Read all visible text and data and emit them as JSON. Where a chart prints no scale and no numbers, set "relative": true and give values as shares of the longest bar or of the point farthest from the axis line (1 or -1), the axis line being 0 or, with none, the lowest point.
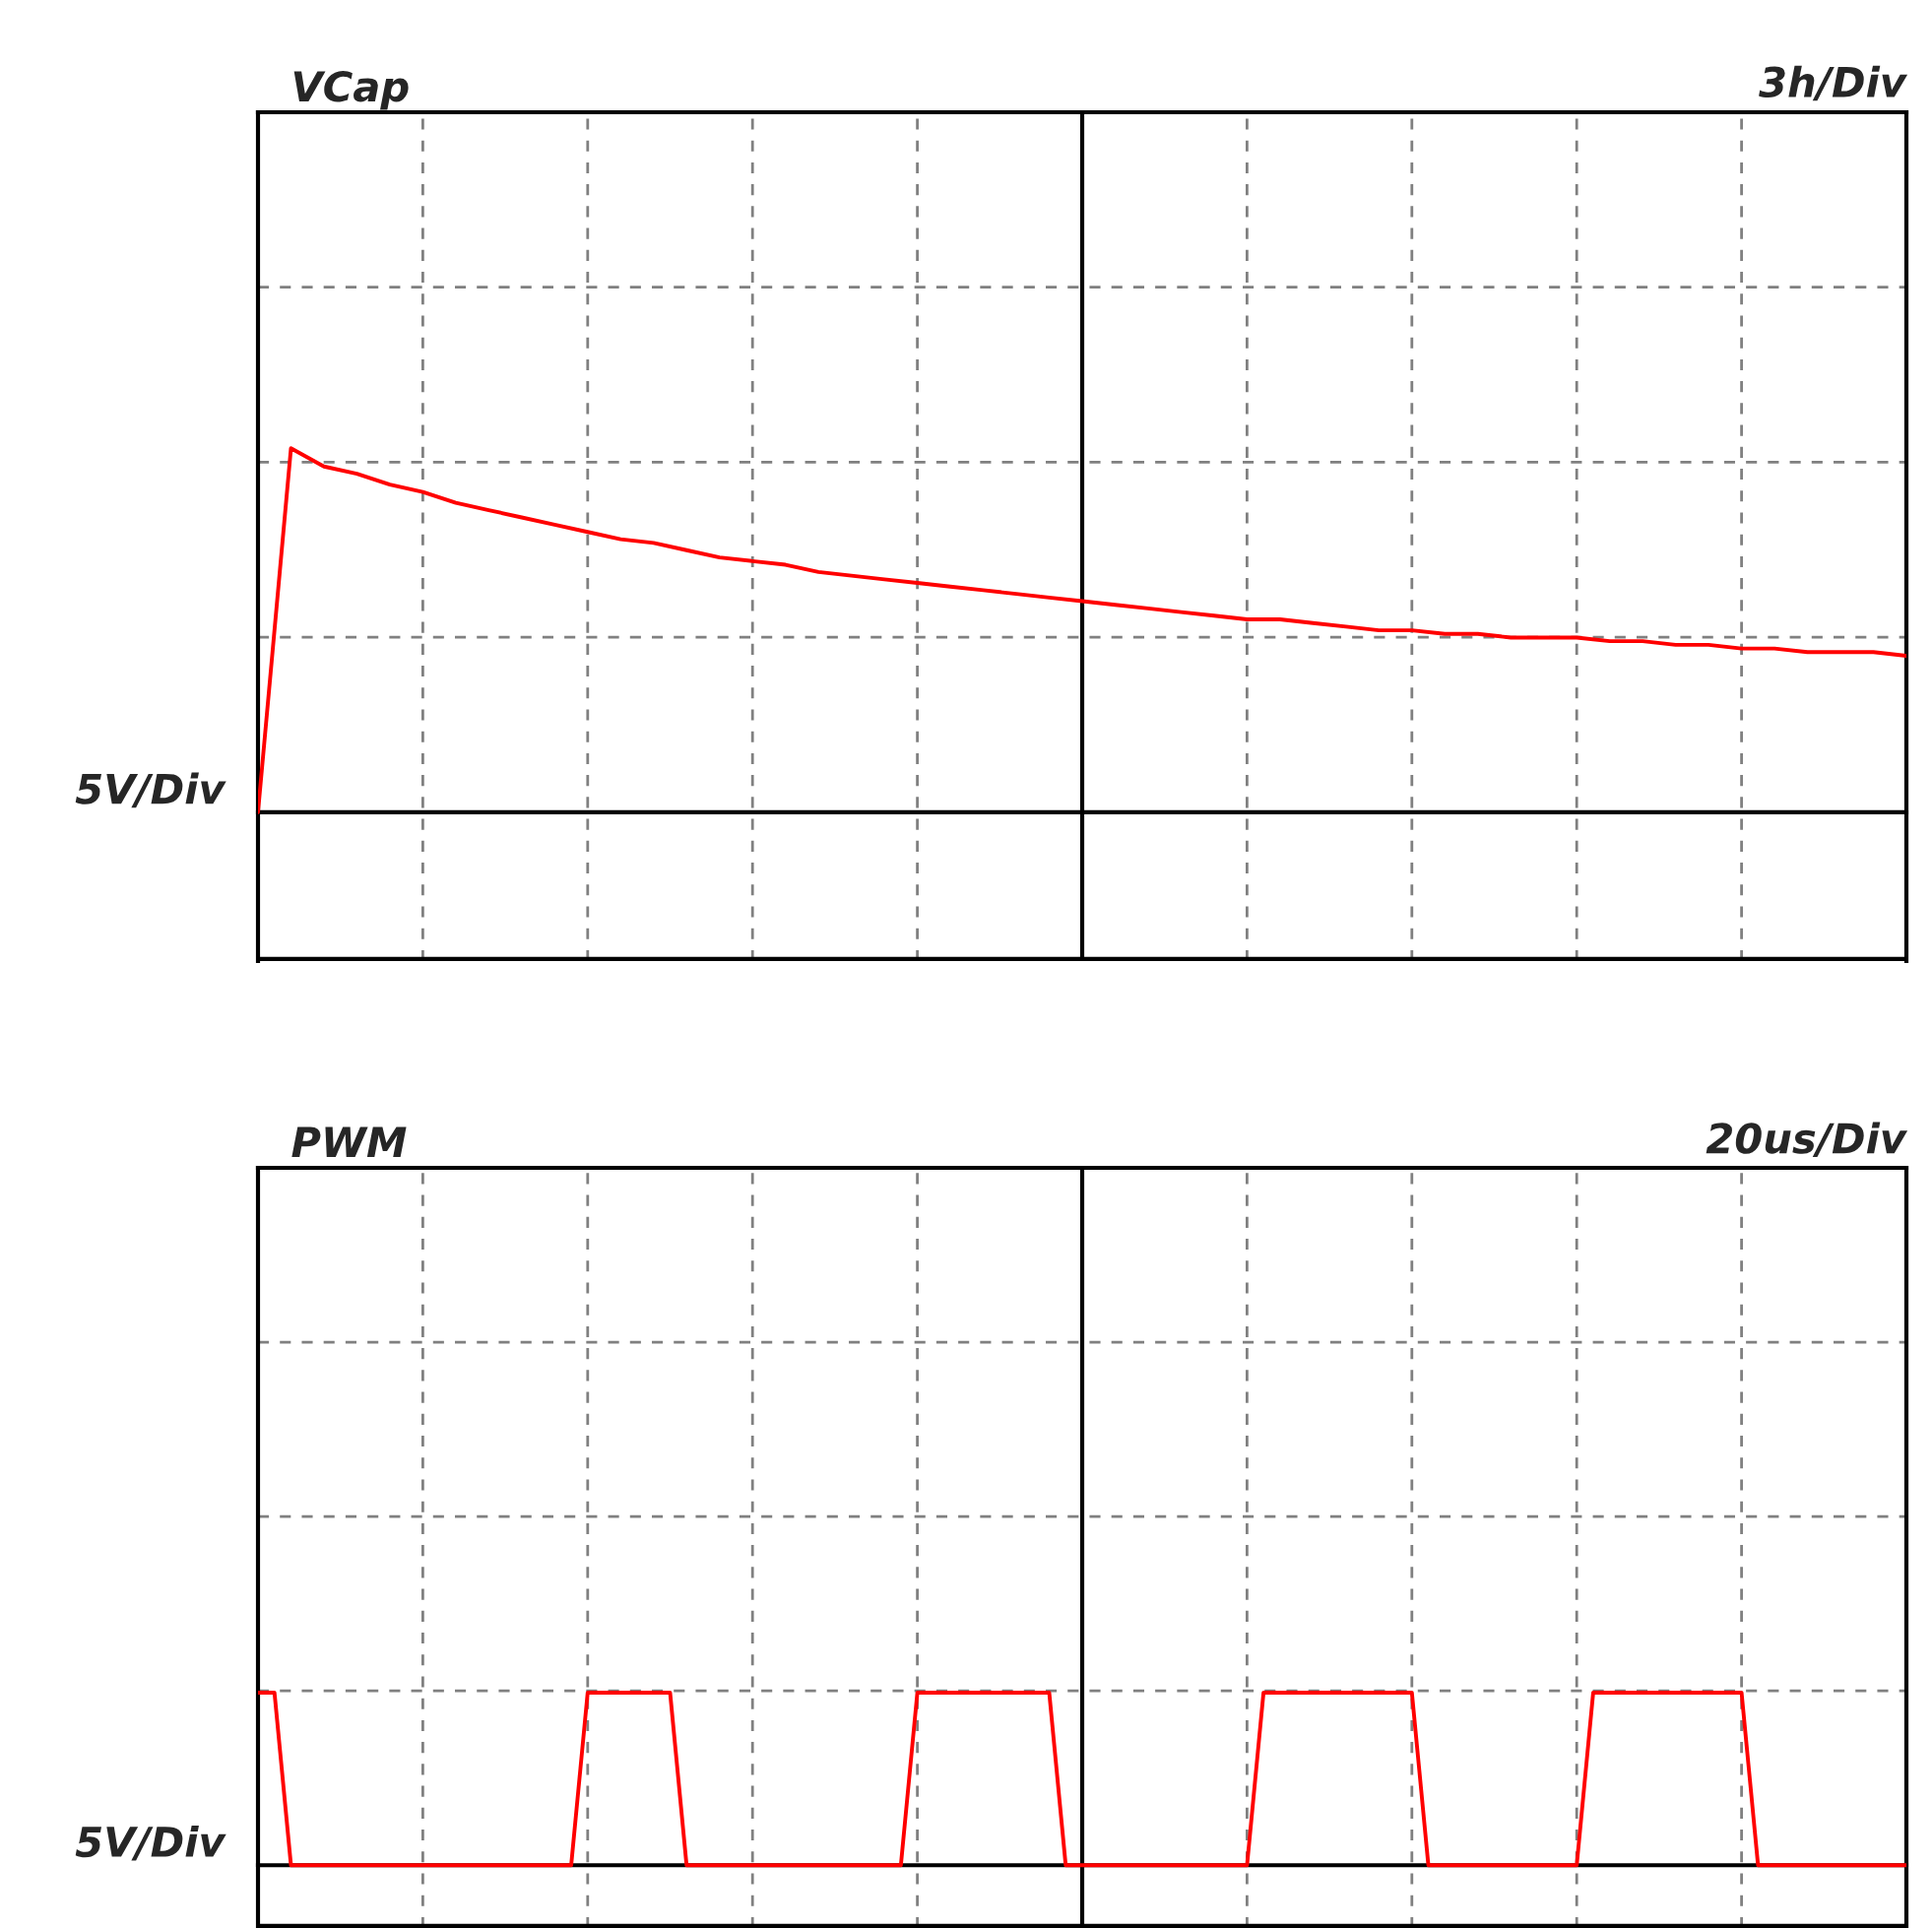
{
  "chart_data": [
    {
      "type": "line",
      "title": "VCap",
      "xlabel": "3h/Div",
      "ylabel": "5V/Div",
      "relative": true,
      "grid": true,
      "categories": [
        null,
        null,
        null,
        null,
        null,
        null,
        null,
        null,
        null,
        null,
        null,
        null,
        null,
        null,
        null,
        null,
        null,
        null,
        null,
        null,
        null,
        null,
        null,
        null,
        null,
        null,
        null,
        null,
        null,
        null,
        null,
        null,
        null,
        null,
        null,
        null,
        null,
        null,
        null,
        null,
        null,
        null,
        null,
        null,
        null,
        null,
        null,
        null,
        null,
        null,
        null
      ],
      "series": [
        {
          "color": "#ff0000",
          "values": [
            0,
            1.0,
            0.95,
            0.93,
            0.9,
            0.88,
            0.85,
            0.83,
            0.81,
            0.79,
            0.77,
            0.75,
            0.74,
            0.72,
            0.7,
            0.69,
            0.68,
            0.66,
            0.65,
            0.64,
            0.63,
            0.62,
            0.61,
            0.6,
            0.59,
            0.58,
            0.57,
            0.56,
            0.55,
            0.54,
            0.53,
            0.53,
            0.52,
            0.51,
            0.5,
            0.5,
            0.49,
            0.49,
            0.48,
            0.48,
            0.48,
            0.47,
            0.47,
            0.46,
            0.46,
            0.45,
            0.45,
            0.44,
            0.44,
            0.44,
            0.43
          ]
        }
      ]
    },
    {
      "type": "line",
      "title": "PWM",
      "xlabel": "20us/Div",
      "ylabel": "5V/Div",
      "relative": true,
      "grid": true,
      "categories": [
        null,
        null,
        null,
        null,
        null,
        null,
        null,
        null,
        null,
        null,
        null,
        null,
        null,
        null,
        null,
        null,
        null,
        null,
        null,
        null,
        null,
        null,
        null,
        null,
        null,
        null,
        null,
        null,
        null,
        null,
        null,
        null,
        null,
        null,
        null,
        null,
        null,
        null,
        null,
        null,
        null,
        null,
        null,
        null,
        null,
        null,
        null,
        null,
        null,
        null,
        null,
        null,
        null,
        null,
        null,
        null,
        null,
        null,
        null,
        null,
        null,
        null,
        null,
        null,
        null,
        null,
        null,
        null,
        null,
        null,
        null,
        null,
        null,
        null,
        null,
        null,
        null,
        null,
        null,
        null,
        null,
        null,
        null,
        null,
        null,
        null,
        null,
        null,
        null,
        null,
        null,
        null,
        null,
        null,
        null,
        null,
        null,
        null,
        null,
        null,
        null
      ],
      "series": [
        {
          "color": "#ff0000",
          "values": [
            1,
            1,
            0,
            0,
            0,
            0,
            0,
            0,
            0,
            0,
            0,
            0,
            0,
            0,
            0,
            0,
            0,
            0,
            0,
            0,
            1,
            1,
            1,
            1,
            1,
            1,
            0,
            0,
            0,
            0,
            0,
            0,
            0,
            0,
            0,
            0,
            0,
            0,
            0,
            0,
            1,
            1,
            1,
            1,
            1,
            1,
            1,
            1,
            1,
            0,
            0,
            0,
            0,
            0,
            0,
            0,
            0,
            0,
            0,
            0,
            0,
            1,
            1,
            1,
            1,
            1,
            1,
            1,
            1,
            1,
            1,
            0,
            0,
            0,
            0,
            0,
            0,
            0,
            0,
            0,
            0,
            1,
            1,
            1,
            1,
            1,
            1,
            1,
            1,
            1,
            1,
            0,
            0,
            0,
            0,
            0,
            0,
            0,
            0,
            0,
            0
          ]
        }
      ]
    }
  ]
}
